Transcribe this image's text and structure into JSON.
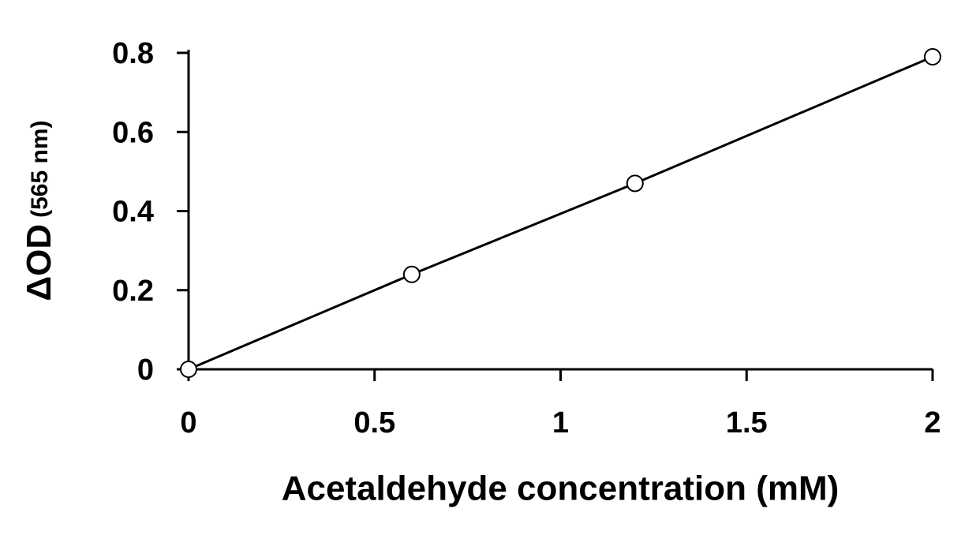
{
  "chart_data": {
    "type": "line",
    "x": [
      0,
      0.6,
      1.2,
      2
    ],
    "values": [
      0,
      0.24,
      0.47,
      0.79
    ],
    "color": "#000000",
    "xlim": [
      0,
      2
    ],
    "ylim": [
      0,
      0.8
    ],
    "xticks": [
      0,
      0.5,
      1,
      1.5,
      2
    ],
    "yticks": [
      0,
      0.2,
      0.4,
      0.6,
      0.8
    ],
    "xlabel": "Acetaldehyde concentration (mM)",
    "ylabel": "ΔOD",
    "ylabel_unit": "(565 nm)",
    "grid": false,
    "markers": true
  }
}
